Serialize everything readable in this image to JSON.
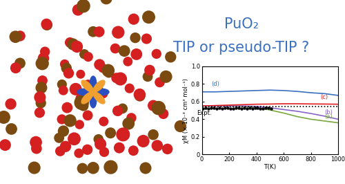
{
  "chart_data": {
    "type": "line",
    "title": "PuO₂",
    "subtitle": "TIP or pseudo-TIP ?",
    "x_label": "T(K)",
    "y_label": "χM (× 10⁻³ cm³ mol⁻¹)",
    "xlim": [
      0,
      1000
    ],
    "xticks": [
      0,
      200,
      400,
      600,
      800,
      1000
    ],
    "ylim": [
      0,
      1.0
    ],
    "yticks": [
      0,
      0.2,
      0.4,
      0.6,
      0.8,
      {
        "value": 1.0,
        "label": "1.0"
      }
    ],
    "grid": false,
    "series": [
      {
        "name": "(a)",
        "color": "#7aa83c",
        "type": "line",
        "line_style": "solid",
        "x": [
          0,
          100,
          200,
          300,
          400,
          500,
          600,
          700,
          800,
          900,
          1000
        ],
        "values": [
          0.55,
          0.55,
          0.55,
          0.545,
          0.53,
          0.505,
          0.47,
          0.43,
          0.4,
          0.38,
          0.36
        ]
      },
      {
        "name": "(b)",
        "color": "#8a63c8",
        "type": "line",
        "line_style": "solid",
        "x": [
          0,
          100,
          200,
          300,
          400,
          500,
          600,
          700,
          800,
          900,
          1000
        ],
        "values": [
          0.55,
          0.55,
          0.55,
          0.55,
          0.545,
          0.53,
          0.51,
          0.49,
          0.465,
          0.435,
          0.4
        ]
      },
      {
        "name": "(c)",
        "color": "#e02020",
        "type": "line",
        "line_style": "solid",
        "x": [
          0,
          100,
          200,
          300,
          400,
          500,
          600,
          700,
          800,
          900,
          1000
        ],
        "values": [
          0.55,
          0.555,
          0.56,
          0.565,
          0.57,
          0.572,
          0.575,
          0.575,
          0.573,
          0.572,
          0.57
        ]
      },
      {
        "name": "(d)",
        "color": "#3a70c0",
        "type": "line",
        "line_style": "solid",
        "x": [
          0,
          100,
          200,
          300,
          400,
          500,
          600,
          700,
          800,
          900,
          1000
        ],
        "values": [
          0.71,
          0.71,
          0.715,
          0.72,
          0.725,
          0.73,
          0.725,
          0.715,
          0.7,
          0.69,
          0.67
        ]
      },
      {
        "name": "Expt.",
        "color": "#000000",
        "type": "scatter",
        "marker": "circle",
        "x": [
          10,
          30,
          50,
          70,
          90,
          110,
          130,
          150,
          170,
          190,
          210,
          230,
          250,
          270,
          290,
          310,
          330,
          350,
          370,
          390,
          410,
          430,
          450,
          470,
          490,
          510
        ],
        "values": [
          0.52,
          0.53,
          0.52,
          0.53,
          0.53,
          0.52,
          0.53,
          0.52,
          0.53,
          0.53,
          0.52,
          0.52,
          0.53,
          0.53,
          0.52,
          0.53,
          0.52,
          0.53,
          0.52,
          0.53,
          0.53,
          0.52,
          0.52,
          0.53,
          0.53,
          0.52
        ]
      },
      {
        "color": "#000000",
        "type": "line",
        "line_style": "dotted",
        "x": [
          0,
          1000
        ],
        "values": [
          0.54,
          0.54
        ]
      }
    ]
  }
}
